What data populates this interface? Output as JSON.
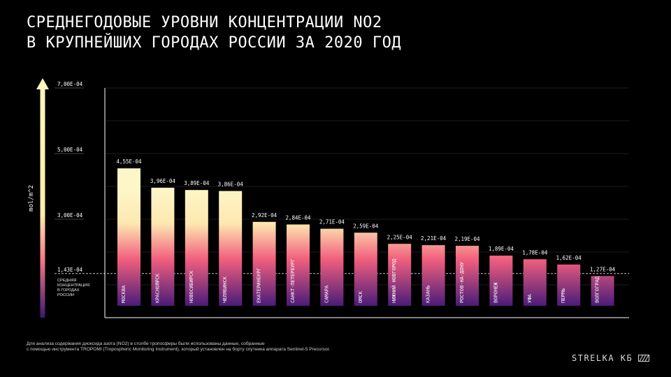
{
  "title_lines": [
    "СРЕДНЕГОДОВЫЕ УРОВНИ КОНЦЕНТРАЦИИ NO2",
    "В КРУПНЕЙШИХ ГОРОДАХ РОССИИ ЗА 2020 ГОД"
  ],
  "footnote_lines": [
    "Для анализа содержания диоксида азота (NO2) в столбе тропосферы были использованы данные, собранные",
    "с помощью инструмента TROPOMI (Tropospheric Monitoring Instrument), который установлен на борту спутника аппарата Sentinel-5 Precursor."
  ],
  "brand": {
    "name": "STRELKA КБ",
    "mark_icon": "hatched-square-icon"
  },
  "colors": {
    "background": "#000000",
    "bar_top": "#fdf7c8",
    "bar_mid": "#f2607e",
    "bar_bottom": "#4a1c78",
    "arrow_top": "#fdf6c0",
    "arrow_bottom": "#3d1670",
    "axis": "#ffffff",
    "grid": "#3a3a3a"
  },
  "chart_data": {
    "type": "bar",
    "ylabel": "mol/m^2",
    "ylim": [
      0.0,
      0.0007
    ],
    "y_ticks": [
      {
        "value": 0.0007,
        "label": "7,00E-04"
      },
      {
        "value": 0.0005,
        "label": "5,00E-04"
      },
      {
        "value": 0.0003,
        "label": "3,00E-04"
      }
    ],
    "reference_line": {
      "value": 0.000143,
      "label": "1,43E-04",
      "caption_lines": [
        "СРЕДНЯЯ",
        "КОНЦЕНТРАЦИЯ",
        "В ГОРОДАХ",
        "РОССИИ"
      ]
    },
    "categories": [
      "МОСКВА",
      "КРАСНОЯРСК",
      "НОВОСИБИРСК",
      "ЧЕЛЯБИНСК",
      "ЕКАТЕРИНБУРГ",
      "САНКТ-ПЕТЕРБУРГ",
      "САМАРА",
      "ОМСК",
      "НИЖНИЙ НОВГОРОД",
      "КАЗАНЬ",
      "РОСТОВ-НА-ДОНУ",
      "ВОРОНЕЖ",
      "УФА",
      "ПЕРМЬ",
      "ВОЛГОГРАД"
    ],
    "values": [
      0.000455,
      0.000396,
      0.000389,
      0.000386,
      0.000292,
      0.000284,
      0.000271,
      0.000259,
      0.000225,
      0.000221,
      0.000219,
      0.000189,
      0.000178,
      0.000162,
      0.000127
    ],
    "value_labels": [
      "4,55E-04",
      "3,96E-04",
      "3,89E-04",
      "3,86E-04",
      "2,92E-04",
      "2,84E-04",
      "2,71E-04",
      "2,59E-04",
      "2,25E-04",
      "2,21E-04",
      "2,19E-04",
      "1,89E-04",
      "1,78E-04",
      "1,62E-04",
      "1,27E-04"
    ],
    "grid": true
  }
}
